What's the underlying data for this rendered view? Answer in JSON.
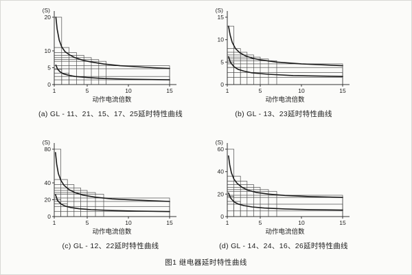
{
  "figure_caption": "图1 继电器延时特性曲线",
  "style": {
    "ink": "#1a1a1a",
    "grid_line": "#4a4a4a",
    "axis_line": "#333333",
    "background": "#fbfbf9"
  },
  "chart_data": [
    {
      "type": "line",
      "key": "a",
      "caption": "(a) GL - 11、21、15、17、25延时特性曲线",
      "y_unit_label": "(S)",
      "xlabel": "动作电流倍数",
      "xlim": [
        1,
        15
      ],
      "ylim": [
        0,
        20
      ],
      "x_ticks": [
        1,
        5,
        10,
        15
      ],
      "y_ticks": [
        0,
        5,
        10,
        20
      ],
      "grid": true,
      "legend": "none",
      "step_rects_upper": [
        [
          1.9,
          20
        ],
        [
          2.8,
          11
        ],
        [
          3.7,
          9.5
        ],
        [
          4.6,
          8.7
        ],
        [
          5.5,
          8
        ],
        [
          6.4,
          7.4
        ],
        [
          7.3,
          6.9
        ],
        [
          15,
          5.6
        ],
        [
          15,
          4.7
        ]
      ],
      "step_rects_lower": [
        [
          1.9,
          4.5
        ],
        [
          2.8,
          3.4
        ],
        [
          15,
          2.4
        ],
        [
          15,
          1.4
        ]
      ],
      "series": [
        {
          "name": "upper",
          "points": [
            [
              1.2,
              20
            ],
            [
              1.35,
              16.5
            ],
            [
              1.6,
              13.2
            ],
            [
              1.9,
              11.2
            ],
            [
              2.3,
              9.8
            ],
            [
              2.8,
              8.9
            ],
            [
              3.5,
              8
            ],
            [
              4.5,
              7.2
            ],
            [
              5.5,
              6.7
            ],
            [
              7,
              6.1
            ],
            [
              9,
              5.6
            ],
            [
              11,
              5.3
            ],
            [
              13,
              5.0
            ],
            [
              15,
              4.8
            ]
          ]
        },
        {
          "name": "lower",
          "points": [
            [
              1.2,
              5.8
            ],
            [
              1.4,
              4.6
            ],
            [
              1.7,
              3.8
            ],
            [
              2.1,
              3.2
            ],
            [
              2.7,
              2.8
            ],
            [
              3.5,
              2.4
            ],
            [
              5,
              2.1
            ],
            [
              7,
              1.8
            ],
            [
              10,
              1.6
            ],
            [
              15,
              1.4
            ]
          ]
        }
      ]
    },
    {
      "type": "line",
      "key": "b",
      "caption": "(b) GL - 13、23延时特性曲线",
      "y_unit_label": "(S)",
      "xlabel": "动作电流倍数",
      "xlim": [
        1,
        15
      ],
      "ylim": [
        0,
        15
      ],
      "x_ticks": [
        1,
        5,
        10,
        15
      ],
      "y_ticks": [
        0,
        5,
        10,
        15
      ],
      "grid": true,
      "legend": "none",
      "step_rects_upper": [
        [
          1.8,
          13
        ],
        [
          2.6,
          8
        ],
        [
          3.4,
          7.2
        ],
        [
          4.2,
          6.6
        ],
        [
          5,
          6.1
        ],
        [
          6,
          5.7
        ],
        [
          7,
          5.3
        ],
        [
          15,
          4.6
        ],
        [
          15,
          3.8
        ]
      ],
      "step_rects_lower": [
        [
          1.8,
          5
        ],
        [
          2.6,
          3.8
        ],
        [
          15,
          2.7
        ],
        [
          15,
          1.6
        ]
      ],
      "series": [
        {
          "name": "upper",
          "points": [
            [
              1.15,
              13
            ],
            [
              1.35,
              11
            ],
            [
              1.6,
              9.4
            ],
            [
              2,
              8
            ],
            [
              2.5,
              7.1
            ],
            [
              3.2,
              6.4
            ],
            [
              4,
              5.9
            ],
            [
              5,
              5.5
            ],
            [
              7,
              5
            ],
            [
              10,
              4.6
            ],
            [
              15,
              4.2
            ]
          ]
        },
        {
          "name": "lower",
          "points": [
            [
              1.15,
              6.2
            ],
            [
              1.4,
              4.9
            ],
            [
              1.8,
              4
            ],
            [
              2.3,
              3.4
            ],
            [
              3,
              3
            ],
            [
              4,
              2.6
            ],
            [
              6,
              2.3
            ],
            [
              9,
              2
            ],
            [
              15,
              1.8
            ]
          ]
        }
      ]
    },
    {
      "type": "line",
      "key": "c",
      "caption": "(c) GL - 12、22延时特性曲线",
      "y_unit_label": "(S)",
      "xlabel": "动作电流倍数",
      "xlim": [
        1,
        15
      ],
      "ylim": [
        0,
        80
      ],
      "x_ticks": [
        1,
        5,
        10,
        15
      ],
      "y_ticks": [
        0,
        20,
        40,
        80
      ],
      "grid": true,
      "legend": "none",
      "step_rects_upper": [
        [
          1.8,
          80
        ],
        [
          2.6,
          44
        ],
        [
          3.4,
          38
        ],
        [
          4.2,
          34
        ],
        [
          5,
          31
        ],
        [
          6,
          28.5
        ],
        [
          7,
          26.5
        ],
        [
          15,
          22
        ],
        [
          15,
          18
        ]
      ],
      "step_rects_lower": [
        [
          1.8,
          20
        ],
        [
          2.6,
          15
        ],
        [
          15,
          12
        ],
        [
          15,
          6
        ]
      ],
      "series": [
        {
          "name": "upper",
          "points": [
            [
              1.15,
              76
            ],
            [
              1.3,
              62
            ],
            [
              1.5,
              51
            ],
            [
              1.8,
              43
            ],
            [
              2.2,
              37
            ],
            [
              2.8,
              32
            ],
            [
              3.5,
              28.5
            ],
            [
              4.5,
              25.5
            ],
            [
              6,
              23
            ],
            [
              8,
              21
            ],
            [
              11,
              19.5
            ],
            [
              15,
              18
            ]
          ]
        },
        {
          "name": "lower",
          "points": [
            [
              1.15,
              26
            ],
            [
              1.4,
              19
            ],
            [
              1.8,
              15
            ],
            [
              2.3,
              12.5
            ],
            [
              3,
              10.8
            ],
            [
              4,
              9.3
            ],
            [
              5.5,
              8.2
            ],
            [
              8,
              7.2
            ],
            [
              11,
              6.5
            ],
            [
              15,
              6
            ]
          ]
        }
      ]
    },
    {
      "type": "line",
      "key": "d",
      "caption": "(d) GL - 14、24、16、26延时特性曲线",
      "y_unit_label": "(S)",
      "xlabel": "动作电流倍数",
      "xlim": [
        1,
        15
      ],
      "ylim": [
        0,
        60
      ],
      "x_ticks": [
        1,
        5,
        10,
        15
      ],
      "y_ticks": [
        0,
        20,
        40,
        60
      ],
      "grid": true,
      "legend": "none",
      "step_rects_upper": [
        [
          1.8,
          60
        ],
        [
          2.6,
          36
        ],
        [
          3.4,
          31.5
        ],
        [
          4.2,
          28.5
        ],
        [
          5,
          26
        ],
        [
          6,
          24
        ],
        [
          7,
          22.5
        ],
        [
          15,
          19
        ],
        [
          15,
          17
        ]
      ],
      "step_rects_lower": [
        [
          1.8,
          18
        ],
        [
          2.6,
          13.5
        ],
        [
          15,
          11
        ],
        [
          15,
          5
        ]
      ],
      "series": [
        {
          "name": "upper",
          "points": [
            [
              1.15,
              54
            ],
            [
              1.3,
              46
            ],
            [
              1.5,
              39
            ],
            [
              1.8,
              33.5
            ],
            [
              2.2,
              29.5
            ],
            [
              2.8,
              26
            ],
            [
              3.5,
              23.5
            ],
            [
              4.5,
              21.5
            ],
            [
              6,
              20
            ],
            [
              8,
              18.8
            ],
            [
              11,
              17.8
            ],
            [
              15,
              17
            ]
          ]
        },
        {
          "name": "lower",
          "points": [
            [
              1.15,
              21
            ],
            [
              1.4,
              16.5
            ],
            [
              1.8,
              13.2
            ],
            [
              2.3,
              11.2
            ],
            [
              3,
              9.8
            ],
            [
              4,
              8.6
            ],
            [
              5.5,
              7.6
            ],
            [
              8,
              6.8
            ],
            [
              11,
              6.2
            ],
            [
              15,
              5.8
            ]
          ]
        }
      ]
    }
  ]
}
